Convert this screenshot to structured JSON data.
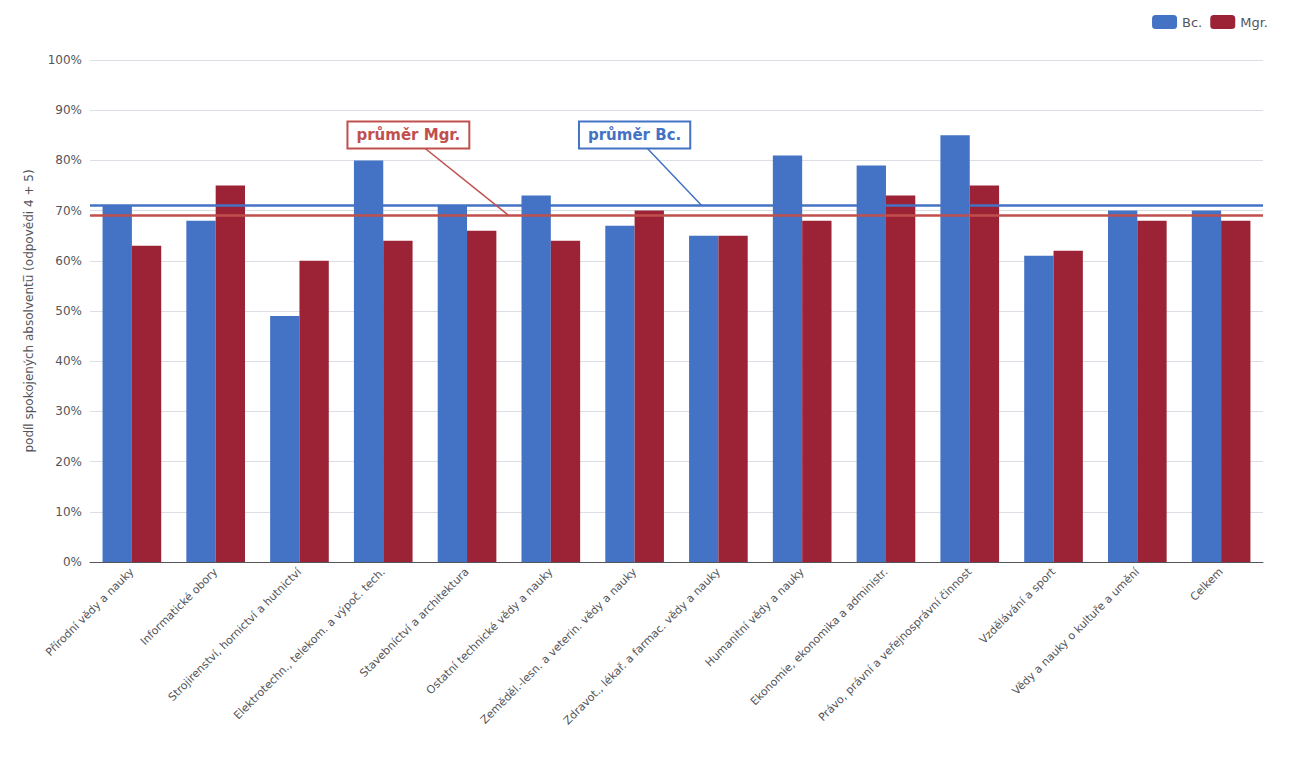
{
  "chart_data": {
    "type": "bar",
    "categories": [
      "Přírodní vědy a nauky",
      "Informatické obory",
      "Strojirenství, hornictví a hutnictví",
      "Elektrotechn., telekom. a výpoč. tech.",
      "Stavebníctví a architektura",
      "Ostatní technické vědy a nauky",
      "Zeměděl.-lesn. a veterin. vědy a nauky",
      "Zdravot., lékař. a farmac. vědy a nauky",
      "Humanitní vědy a nauky",
      "Ekonomie, ekonomika a administr.",
      "Právo, právní a veřejnosprávní činnost",
      "Vzdělávání a sport",
      "Vědy a nauky o kultuře a umění",
      "Celkem"
    ],
    "series": [
      {
        "name": "Bc.",
        "color": "#4472C4",
        "values": [
          71,
          68,
          49,
          80,
          71,
          73,
          67,
          65,
          81,
          79,
          85,
          61,
          70,
          70
        ]
      },
      {
        "name": "Mgr.",
        "color": "#9B2335",
        "values": [
          63,
          75,
          60,
          64,
          66,
          64,
          70,
          65,
          68,
          73,
          75,
          62,
          68,
          68
        ]
      }
    ],
    "ylabel": "podíl spokojených absolventu̅ (odpovědi 4 + 5)",
    "ylim": [
      0,
      100
    ],
    "yticks": [
      {
        "value": 0,
        "label": "0%"
      },
      {
        "value": 10,
        "label": "10%"
      },
      {
        "value": 20,
        "label": "20%"
      },
      {
        "value": 30,
        "label": "30%"
      },
      {
        "value": 40,
        "label": "40%"
      },
      {
        "value": 50,
        "label": "50%"
      },
      {
        "value": 60,
        "label": "60%"
      },
      {
        "value": 70,
        "label": "70%"
      },
      {
        "value": 80,
        "label": "80%"
      },
      {
        "value": 90,
        "label": "90%"
      },
      {
        "value": 100,
        "label": "100%"
      }
    ],
    "annotations": [
      {
        "text": "průměr Mgr.",
        "y": 69,
        "color": "#C0504D"
      },
      {
        "text": "průměr Bc.",
        "y": 71,
        "color": "#4472C4"
      }
    ],
    "grid": true,
    "legend": "upper right"
  }
}
